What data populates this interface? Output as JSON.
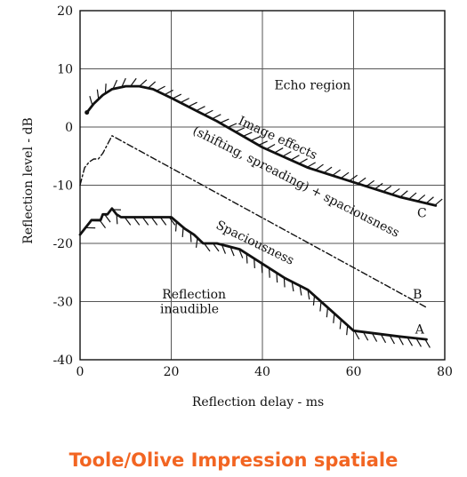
{
  "caption": "Toole/Olive Impression spatiale",
  "colors": {
    "caption": "#f26522",
    "ink": "#111111",
    "grid": "#555555"
  },
  "chart_data": {
    "type": "line",
    "title": "",
    "xlabel": "Reflection delay - ms",
    "ylabel": "Reflection level - dB",
    "xlim": [
      0,
      80
    ],
    "ylim": [
      -40,
      20
    ],
    "xticks": [
      "0",
      "20",
      "40",
      "60",
      "80"
    ],
    "yticks": [
      "20",
      "10",
      "0",
      "-10",
      "-20",
      "-30",
      "-40"
    ],
    "grid": true,
    "series": [
      {
        "name": "C",
        "style": "solid, hatched above",
        "x": [
          1.5,
          3,
          5,
          7,
          10,
          13,
          16,
          20,
          25,
          30,
          40,
          50,
          60,
          70,
          78
        ],
        "y": [
          2.5,
          4,
          5.5,
          6.5,
          7,
          7,
          6.5,
          5,
          3,
          1,
          -3.5,
          -7,
          -9.5,
          -12,
          -13.5
        ]
      },
      {
        "name": "B",
        "style": "dash-dot",
        "x": [
          0,
          1,
          2,
          3,
          4,
          5,
          6,
          7,
          76
        ],
        "y": [
          -10,
          -7,
          -6,
          -5.5,
          -5.5,
          -4.5,
          -3,
          -1.5,
          -31
        ]
      },
      {
        "name": "A",
        "style": "solid, hatched below",
        "x": [
          0,
          1,
          2,
          2.5,
          4.5,
          5,
          6,
          7,
          8,
          9,
          10,
          20,
          23,
          25,
          27,
          30,
          35,
          40,
          45,
          50,
          55,
          60,
          70,
          76
        ],
        "y": [
          -18.5,
          -17.5,
          -16.5,
          -16,
          -16,
          -15,
          -15,
          -14,
          -15,
          -15.5,
          -15.5,
          -15.5,
          -17.5,
          -18.5,
          -20,
          -20,
          -21,
          -23.5,
          -26,
          -28,
          -31.5,
          -35,
          -36,
          -36.5
        ]
      }
    ],
    "annotations": [
      {
        "text": "Echo region",
        "x": 51,
        "y": 6.5
      },
      {
        "text": "Image effects",
        "x": 43,
        "y": -2.5,
        "rotate": 25
      },
      {
        "text": "(shifting, spreading) + spaciousness",
        "x": 47,
        "y": -10,
        "rotate": 27
      },
      {
        "text": "Spaciousness",
        "x": 38,
        "y": -20.5,
        "rotate": 26
      },
      {
        "text": "Reflection",
        "x": 25,
        "y": -29.5
      },
      {
        "text": "inaudible",
        "x": 24,
        "y": -32
      },
      {
        "text": "C",
        "x": 75,
        "y": -15.5
      },
      {
        "text": "B",
        "x": 74,
        "y": -29.5
      },
      {
        "text": "A",
        "x": 74.5,
        "y": -35.5
      }
    ]
  }
}
